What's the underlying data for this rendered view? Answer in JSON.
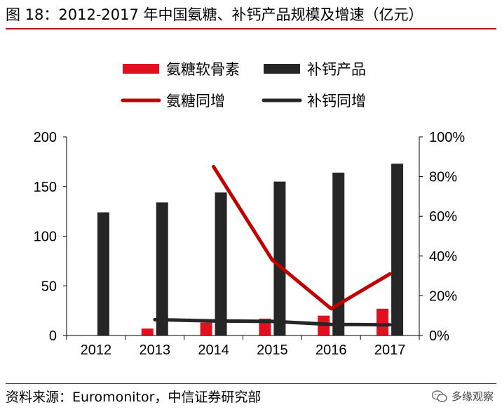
{
  "figure": {
    "title": "图 18：2012-2017 年中国氨糖、补钙产品规模及增速（亿元）",
    "source": "资料来源：Euromonitor，中信证券研究部",
    "watermark": "多缘观察"
  },
  "chart_data": {
    "type": "bar",
    "categories": [
      "2012",
      "2013",
      "2014",
      "2015",
      "2016",
      "2017"
    ],
    "series": [
      {
        "name": "氨糖软骨素",
        "type": "bar",
        "axis": "left",
        "color": "#e0101e",
        "values": [
          null,
          7,
          13,
          17,
          20,
          27
        ]
      },
      {
        "name": "补钙产品",
        "type": "bar",
        "axis": "left",
        "color": "#262626",
        "values": [
          124,
          134,
          144,
          155,
          164,
          173
        ]
      },
      {
        "name": "氨糖同增",
        "type": "line",
        "axis": "right",
        "color": "#c00000",
        "values": [
          null,
          null,
          85,
          38,
          13.5,
          31
        ]
      },
      {
        "name": "补钙同增",
        "type": "line",
        "axis": "right",
        "color": "#262626",
        "values": [
          null,
          8,
          7.3,
          7.1,
          5.6,
          5.4
        ]
      }
    ],
    "left_axis": {
      "ylim": [
        0,
        200
      ],
      "ticks": [
        0,
        50,
        100,
        150,
        200
      ]
    },
    "right_axis": {
      "ylim": [
        0,
        100
      ],
      "ticks": [
        0,
        20,
        40,
        60,
        80,
        100
      ],
      "tick_labels": [
        "0%",
        "20%",
        "40%",
        "60%",
        "80%",
        "100%"
      ]
    },
    "legend": {
      "placement": "top-center"
    },
    "grid": false
  }
}
